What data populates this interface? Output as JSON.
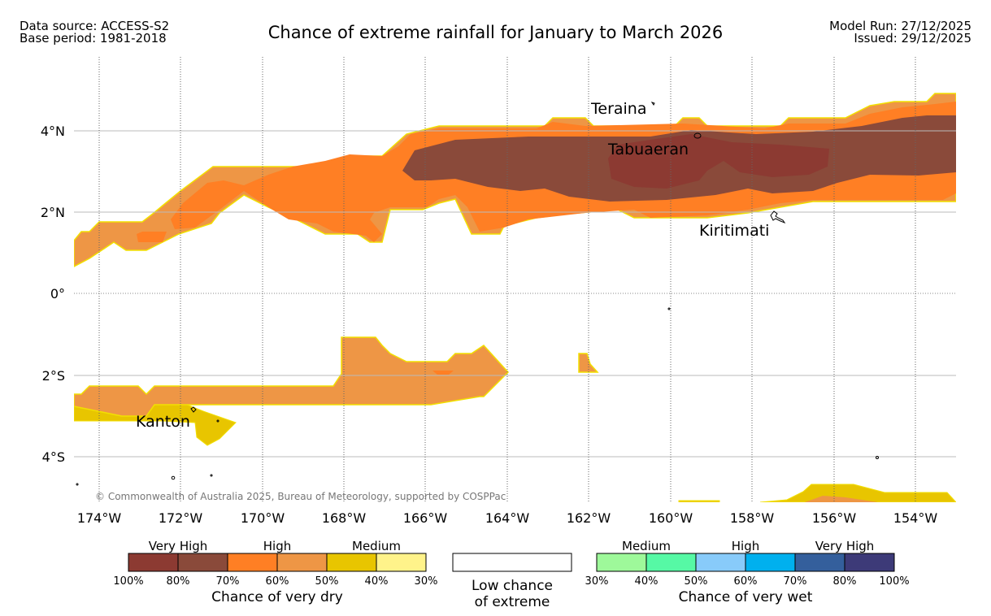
{
  "header": {
    "data_source": "Data source: ACCESS-S2",
    "base_period": "Base period: 1981-2018",
    "title": "Chance of extreme rainfall for January to March 2026",
    "model_run": "Model Run: 27/12/2025",
    "issued": "Issued: 29/12/2025"
  },
  "axes": {
    "lat_labels": [
      "4°N",
      "2°N",
      "0°",
      "2°S",
      "4°S"
    ],
    "lon_labels": [
      "174°W",
      "172°W",
      "170°W",
      "168°W",
      "166°W",
      "164°W",
      "162°W",
      "160°W",
      "158°W",
      "156°W",
      "154°W"
    ]
  },
  "places": [
    "Teraina",
    "Tabuaeran",
    "Kiritimati",
    "Kanton"
  ],
  "copyright": "© Commonwealth of Australia 2025, Bureau of Meteorology, supported by COSPPac",
  "legend": {
    "dry": {
      "headers": [
        "Very High",
        "High",
        "Medium"
      ],
      "colors": [
        "#8c3a32",
        "#8a4a3a",
        "#ff7f24",
        "#ee9645",
        "#e8c500",
        "#fff38a"
      ],
      "ticks": [
        "100%",
        "80%",
        "70%",
        "60%",
        "50%",
        "40%",
        "30%"
      ],
      "label": "Chance of very dry"
    },
    "low": {
      "line1": "Low chance",
      "line2": "of extreme"
    },
    "wet": {
      "headers": [
        "Medium",
        "High",
        "Very High"
      ],
      "colors": [
        "#9ef99a",
        "#56f9a5",
        "#88cbfa",
        "#00b0ee",
        "#345f9c",
        "#3d3a78"
      ],
      "ticks": [
        "30%",
        "40%",
        "50%",
        "60%",
        "70%",
        "80%",
        "100%"
      ],
      "label": "Chance of very wet"
    }
  }
}
